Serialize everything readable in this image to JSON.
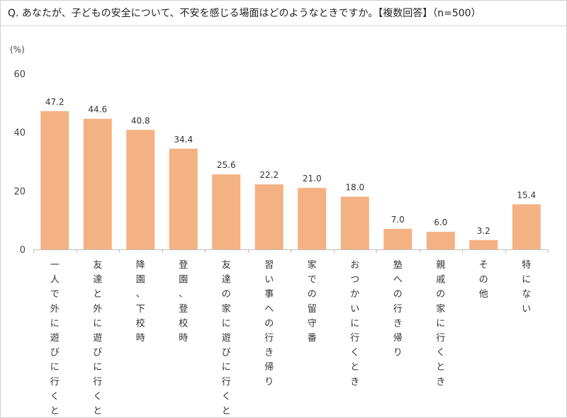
{
  "chart_data": {
    "type": "bar",
    "title": "Q. あなたが、子どもの安全について、不安を感じる場面はどのようなときですか。【複数回答】（n=500）",
    "unit_label": "(%)",
    "categories": [
      "一人で外に遊びに行くとき",
      "友達と外に遊びに行くとき",
      "降園、下校時",
      "登園、登校時",
      "友達の家に遊びに行くとき",
      "習い事への行き帰り",
      "家での留守番",
      "おつかいに行くとき",
      "塾への行き帰り",
      "親戚の家に行くとき",
      "その他",
      "特にない"
    ],
    "values": [
      47.2,
      44.6,
      40.8,
      34.4,
      25.6,
      22.2,
      21.0,
      18.0,
      7.0,
      6.0,
      3.2,
      15.4
    ],
    "value_labels": [
      "47.2",
      "44.6",
      "40.8",
      "34.4",
      "25.6",
      "22.2",
      "21.0",
      "18.0",
      "7.0",
      "6.0",
      "3.2",
      "15.4"
    ],
    "ylim": [
      0,
      60
    ],
    "yticks": [
      "0",
      "20",
      "40",
      "60"
    ],
    "grid": false,
    "bar_color": "#F4B183"
  }
}
